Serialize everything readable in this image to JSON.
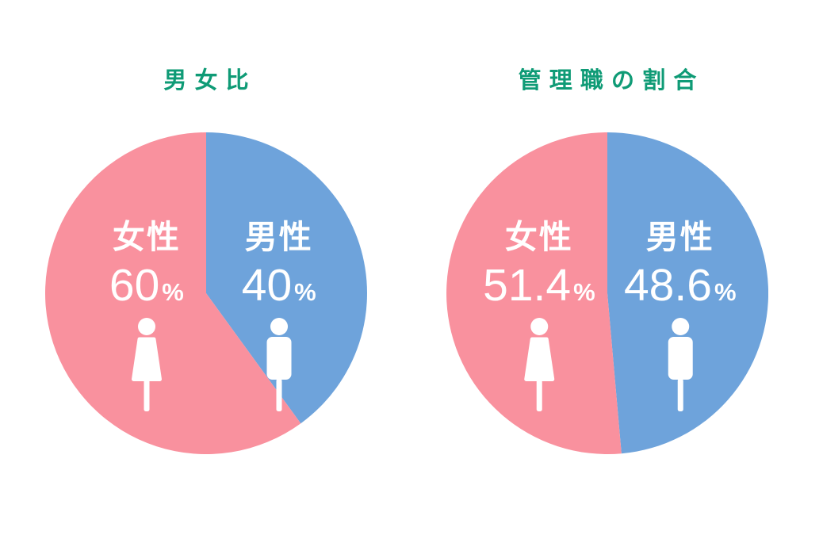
{
  "percent_sign": "%",
  "colors": {
    "female_pink": "#f9919e",
    "male_blue": "#6ea3db",
    "title_green": "#0f9b76",
    "label_white": "#ffffff",
    "background": "#ffffff"
  },
  "chart_data": [
    {
      "type": "pie",
      "title": "男女比",
      "legend_position": "none",
      "start_angle": "12-o-clock, male slice clockwise",
      "slices": [
        {
          "label": "女性",
          "value": 60,
          "display_value": "60",
          "unit": "%",
          "color": "#f9919e",
          "icon": "female-person-icon"
        },
        {
          "label": "男性",
          "value": 40,
          "display_value": "40",
          "unit": "%",
          "color": "#6ea3db",
          "icon": "male-person-icon"
        }
      ]
    },
    {
      "type": "pie",
      "title": "管理職の割合",
      "legend_position": "none",
      "start_angle": "12-o-clock, male slice clockwise",
      "slices": [
        {
          "label": "女性",
          "value": 51.4,
          "display_value": "51.4",
          "unit": "%",
          "color": "#f9919e",
          "icon": "female-person-icon"
        },
        {
          "label": "男性",
          "value": 48.6,
          "display_value": "48.6",
          "unit": "%",
          "color": "#6ea3db",
          "icon": "male-person-icon"
        }
      ]
    }
  ]
}
